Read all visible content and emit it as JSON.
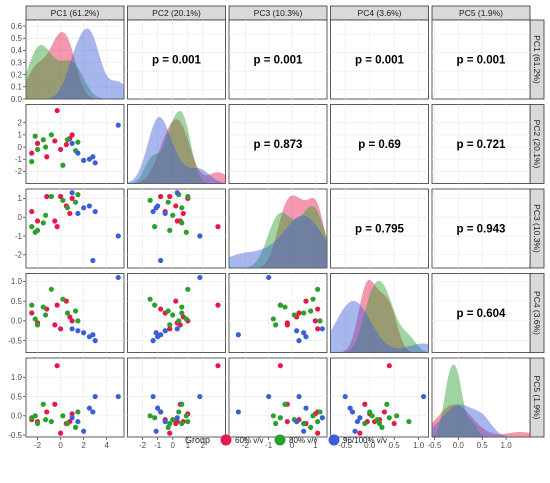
{
  "chart_data": {
    "type": "scatter-matrix",
    "variables": [
      "PC1 (61.2%)",
      "PC2 (20.1%)",
      "PC3 (10.3%)",
      "PC4 (3.6%)",
      "PC5 (1.9%)"
    ],
    "ranges": [
      [
        -3,
        5.5
      ],
      [
        -3,
        3.5
      ],
      [
        -2.7,
        1.5
      ],
      [
        -0.8,
        1.2
      ],
      [
        -0.55,
        1.5
      ]
    ],
    "ticks": [
      [
        -2,
        0,
        2,
        4
      ],
      [
        -2,
        -1,
        0,
        1,
        2
      ],
      [
        -2,
        -1,
        0,
        1
      ],
      [
        -0.5,
        0.0,
        0.5,
        1.0
      ],
      [
        -0.5,
        0.0,
        0.5,
        1.0
      ]
    ],
    "tick_labels": [
      [
        "-2",
        "0",
        "2",
        "4"
      ],
      [
        "-2",
        "-1",
        "0",
        "1",
        "2"
      ],
      [
        "-2",
        "-1",
        "0",
        "1"
      ],
      [
        "-0.5",
        "0.0",
        "0.5",
        "1.0"
      ],
      [
        "-0.5",
        "0.0",
        "0.5",
        "1.0"
      ]
    ],
    "density_y_ticks": [
      0.0,
      0.1,
      0.2,
      0.3,
      0.4,
      0.5,
      0.6
    ],
    "density_y_tick_labels": [
      "0.0",
      "0.1",
      "0.2",
      "0.3",
      "0.4",
      "0.5",
      "0.6"
    ],
    "density_y_range": [
      0,
      0.65
    ],
    "correlations": [
      {
        "row": 0,
        "col": 1,
        "label": "p = 0.001"
      },
      {
        "row": 0,
        "col": 2,
        "label": "p = 0.001"
      },
      {
        "row": 0,
        "col": 3,
        "label": "p = 0.001"
      },
      {
        "row": 0,
        "col": 4,
        "label": "p = 0.001"
      },
      {
        "row": 1,
        "col": 2,
        "label": "p = 0.873"
      },
      {
        "row": 1,
        "col": 3,
        "label": "p = 0.69"
      },
      {
        "row": 1,
        "col": 4,
        "label": "p = 0.721"
      },
      {
        "row": 2,
        "col": 3,
        "label": "p = 0.795"
      },
      {
        "row": 2,
        "col": 4,
        "label": "p = 0.943"
      },
      {
        "row": 3,
        "col": 4,
        "label": "p = 0.604"
      }
    ],
    "groups": [
      {
        "name": "60% v/v",
        "color": "#e41a4c",
        "points": [
          [
            -2.5,
            -0.5,
            0.3,
            0.2,
            -0.1
          ],
          [
            -2.0,
            0.3,
            -0.2,
            -0.05,
            -0.15
          ],
          [
            -1.2,
            -0.8,
            1.1,
            0.3,
            0.1
          ],
          [
            -0.5,
            0.5,
            -0.2,
            -0.1,
            0.3
          ],
          [
            -0.3,
            3.0,
            -0.5,
            0.4,
            1.3
          ],
          [
            0.0,
            -0.2,
            1.1,
            -0.2,
            -0.45
          ],
          [
            0.5,
            0.2,
            0.6,
            0.5,
            -0.2
          ],
          [
            0.8,
            0.7,
            0.2,
            0.1,
            -0.15
          ],
          [
            1.0,
            1.0,
            1.0,
            0.0,
            0.05
          ]
        ]
      },
      {
        "name": "80% v/v",
        "color": "#2ca02c",
        "points": [
          [
            -2.5,
            -1.2,
            -0.5,
            0.4,
            -0.05
          ],
          [
            -2.2,
            0.9,
            -0.8,
            0.05,
            0.0
          ],
          [
            -2.0,
            -0.2,
            -0.7,
            -0.1,
            -0.2
          ],
          [
            -1.5,
            0.6,
            -0.3,
            0.35,
            0.3
          ],
          [
            -1.3,
            0.0,
            0.1,
            0.15,
            -0.1
          ],
          [
            -0.8,
            1.0,
            1.1,
            0.8,
            -0.15
          ],
          [
            0.2,
            -1.5,
            0.9,
            0.55,
            0.0
          ],
          [
            0.6,
            0.6,
            0.5,
            0.2,
            -0.2
          ],
          [
            1.3,
            -0.3,
            0.8,
            0.25,
            -0.3
          ],
          [
            1.5,
            0.4,
            1.2,
            0.0,
            0.1
          ]
        ]
      },
      {
        "name": "96/100% v/v",
        "color": "#3b5fd9",
        "points": [
          [
            1.0,
            0.3,
            1.3,
            -0.2,
            -0.05
          ],
          [
            1.5,
            -0.5,
            0.2,
            -0.25,
            -0.15
          ],
          [
            2.0,
            -1.1,
            0.5,
            -0.3,
            -0.4
          ],
          [
            2.5,
            -1.0,
            0.6,
            -0.4,
            0.2
          ],
          [
            2.8,
            -0.8,
            -2.3,
            -0.35,
            0.1
          ],
          [
            3.0,
            -1.3,
            0.3,
            -0.5,
            0.5
          ],
          [
            5.0,
            1.8,
            -1.0,
            1.1,
            0.5
          ]
        ]
      }
    ],
    "legend": {
      "title": "Group",
      "position": "bottom",
      "labels": [
        "60% v/v",
        "80% v/v",
        "96/100% v/v"
      ]
    },
    "grid": true
  }
}
